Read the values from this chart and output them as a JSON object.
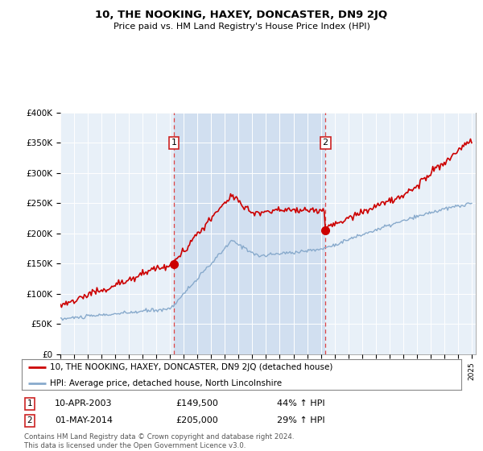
{
  "title": "10, THE NOOKING, HAXEY, DONCASTER, DN9 2JQ",
  "subtitle": "Price paid vs. HM Land Registry's House Price Index (HPI)",
  "plot_bg_color": "#e8f0f8",
  "shade_color": "#c8d8ee",
  "red_color": "#cc0000",
  "blue_color": "#88aacc",
  "dashed_color": "#dd4444",
  "marker_color": "#cc0000",
  "ylim": [
    0,
    400000
  ],
  "yticks": [
    0,
    50000,
    100000,
    150000,
    200000,
    250000,
    300000,
    350000,
    400000
  ],
  "ytick_labels": [
    "£0",
    "£50K",
    "£100K",
    "£150K",
    "£200K",
    "£250K",
    "£300K",
    "£350K",
    "£400K"
  ],
  "sale1_date": 2003.27,
  "sale1_price": 149500,
  "sale2_date": 2014.33,
  "sale2_price": 205000,
  "legend_line1": "10, THE NOOKING, HAXEY, DONCASTER, DN9 2JQ (detached house)",
  "legend_line2": "HPI: Average price, detached house, North Lincolnshire",
  "annotation1_date": "10-APR-2003",
  "annotation1_price": "£149,500",
  "annotation1_hpi": "44% ↑ HPI",
  "annotation2_date": "01-MAY-2014",
  "annotation2_price": "£205,000",
  "annotation2_hpi": "29% ↑ HPI",
  "footer": "Contains HM Land Registry data © Crown copyright and database right 2024.\nThis data is licensed under the Open Government Licence v3.0."
}
